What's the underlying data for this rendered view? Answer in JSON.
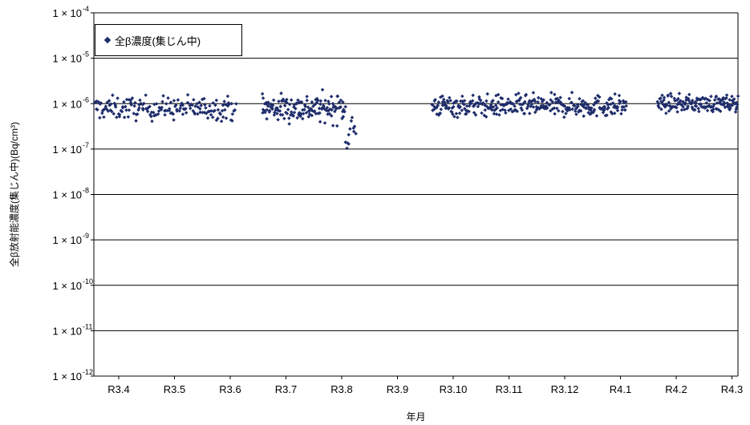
{
  "chart_data": {
    "type": "scatter",
    "title": "",
    "xlabel": "年月",
    "ylabel": "全β放射能濃度(集じん中)(Bq/cm³)",
    "y_scale": "log",
    "ylim": [
      1e-12,
      0.0001
    ],
    "y_ticks": [
      {
        "exp": "-4"
      },
      {
        "exp": "-5"
      },
      {
        "exp": "-6"
      },
      {
        "exp": "-7"
      },
      {
        "exp": "-8"
      },
      {
        "exp": "-9"
      },
      {
        "exp": "-10"
      },
      {
        "exp": "-11"
      },
      {
        "exp": "-12"
      }
    ],
    "y_tick_mantissa": "1 × 10",
    "x_tick_labels": [
      "R3.4",
      "R3.5",
      "R3.6",
      "R3.7",
      "R3.8",
      "R3.9",
      "R3.10",
      "R3.11",
      "R3.12",
      "R4.1",
      "R4.2",
      "R4.3"
    ],
    "grid": "horizontal",
    "legend_position": "top-left",
    "marker_color": "#1f2d6b",
    "series": [
      {
        "name": "全β濃度(集じん中)",
        "segments": [
          {
            "start_month": 0,
            "end_month": 2.55,
            "log_mean": -6.1,
            "log_spread": 0.18,
            "count": 180
          },
          {
            "start_month": 3.0,
            "end_month": 4.5,
            "log_mean": -6.1,
            "log_spread": 0.22,
            "count": 150
          },
          {
            "start_month": 4.5,
            "end_month": 4.7,
            "log_mean": -6.6,
            "log_spread": 0.35,
            "count": 12
          },
          {
            "start_month": 6.05,
            "end_month": 9.55,
            "log_mean": -6.05,
            "log_spread": 0.17,
            "count": 330
          },
          {
            "start_month": 10.1,
            "end_month": 11.55,
            "log_mean": -6.0,
            "log_spread": 0.13,
            "count": 150
          }
        ]
      }
    ]
  }
}
